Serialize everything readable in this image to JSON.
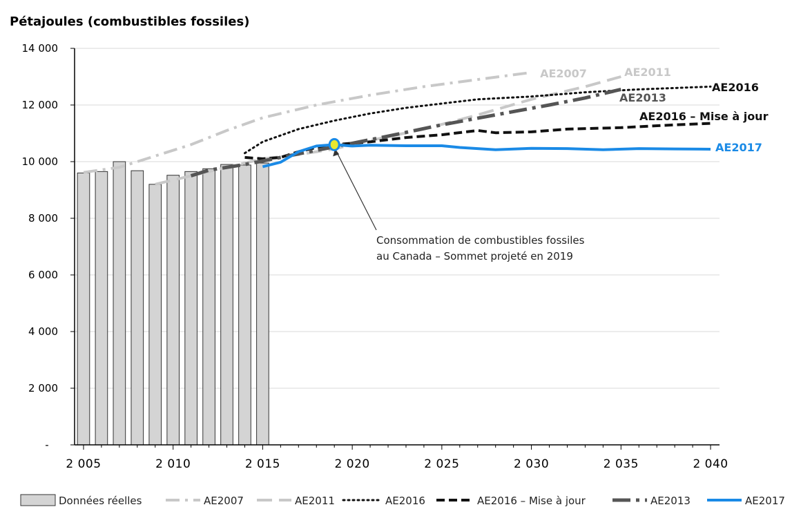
{
  "chart_data": {
    "type": "bar+line",
    "ylabel": "Pétajoules (combustibles fossiles)",
    "ylim": [
      0,
      14000
    ],
    "xlim": [
      2004.5,
      2040.5
    ],
    "y_ticks": [
      {
        "value": 0,
        "label": "-"
      },
      {
        "value": 2000,
        "label": "2 000"
      },
      {
        "value": 4000,
        "label": "4 000"
      },
      {
        "value": 6000,
        "label": "6 000"
      },
      {
        "value": 8000,
        "label": "8 000"
      },
      {
        "value": 10000,
        "label": "10 000"
      },
      {
        "value": 12000,
        "label": "12 000"
      },
      {
        "value": 14000,
        "label": "14 000"
      }
    ],
    "x_ticks": [
      {
        "value": 2005,
        "label": "2 005"
      },
      {
        "value": 2010,
        "label": "2 010"
      },
      {
        "value": 2015,
        "label": "2 015"
      },
      {
        "value": 2020,
        "label": "2 020"
      },
      {
        "value": 2025,
        "label": "2 025"
      },
      {
        "value": 2030,
        "label": "2 030"
      },
      {
        "value": 2035,
        "label": "2 035"
      },
      {
        "value": 2040,
        "label": "2 040"
      }
    ],
    "gridlines": true,
    "bars": {
      "name": "Données réelles",
      "color": "#d4d4d4",
      "x": [
        2005,
        2006,
        2007,
        2008,
        2009,
        2010,
        2011,
        2012,
        2013,
        2014,
        2015
      ],
      "values": [
        9600,
        9650,
        10000,
        9680,
        9200,
        9520,
        9650,
        9750,
        9900,
        9880,
        9950
      ]
    },
    "series": [
      {
        "name": "AE2007",
        "color": "#c8c8c8",
        "style": "dashdot",
        "label": "AE2007",
        "points": [
          [
            2005,
            9620
          ],
          [
            2007,
            9800
          ],
          [
            2009,
            10200
          ],
          [
            2011,
            10600
          ],
          [
            2013,
            11100
          ],
          [
            2015,
            11550
          ],
          [
            2018,
            12000
          ],
          [
            2021,
            12350
          ],
          [
            2024,
            12650
          ],
          [
            2027,
            12900
          ],
          [
            2030,
            13150
          ]
        ]
      },
      {
        "name": "AE2011",
        "color": "#c8c8c8",
        "style": "longdash",
        "label": "AE2011",
        "points": [
          [
            2009,
            9200
          ],
          [
            2011,
            9500
          ],
          [
            2013,
            9800
          ],
          [
            2015,
            10100
          ],
          [
            2017,
            10250
          ],
          [
            2019,
            10450
          ],
          [
            2021,
            10750
          ],
          [
            2024,
            11150
          ],
          [
            2027,
            11650
          ],
          [
            2030,
            12200
          ],
          [
            2033,
            12650
          ],
          [
            2035,
            13000
          ]
        ]
      },
      {
        "name": "AE2016",
        "color": "#111111",
        "style": "dotted",
        "label": "AE2016",
        "points": [
          [
            2014,
            10300
          ],
          [
            2015,
            10700
          ],
          [
            2017,
            11150
          ],
          [
            2019,
            11450
          ],
          [
            2021,
            11700
          ],
          [
            2023,
            11900
          ],
          [
            2025,
            12050
          ],
          [
            2027,
            12200
          ],
          [
            2030,
            12300
          ],
          [
            2033,
            12450
          ],
          [
            2036,
            12550
          ],
          [
            2040,
            12650
          ]
        ]
      },
      {
        "name": "AE2016 – Mise à jour",
        "color": "#111111",
        "style": "dashed",
        "label": "AE2016 – Mise à jour",
        "points": [
          [
            2014,
            10150
          ],
          [
            2015,
            10100
          ],
          [
            2016,
            10150
          ],
          [
            2017,
            10350
          ],
          [
            2018,
            10500
          ],
          [
            2019,
            10600
          ],
          [
            2021,
            10700
          ],
          [
            2023,
            10850
          ],
          [
            2025,
            10950
          ],
          [
            2027,
            11100
          ],
          [
            2028,
            11020
          ],
          [
            2030,
            11050
          ],
          [
            2032,
            11150
          ],
          [
            2035,
            11200
          ],
          [
            2038,
            11300
          ],
          [
            2040,
            11350
          ]
        ]
      },
      {
        "name": "AE2013",
        "color": "#555555",
        "style": "longdashdot",
        "label": "AE2013",
        "points": [
          [
            2011,
            9500
          ],
          [
            2012,
            9700
          ],
          [
            2014,
            9900
          ],
          [
            2016,
            10150
          ],
          [
            2018,
            10400
          ],
          [
            2020,
            10650
          ],
          [
            2022,
            10900
          ],
          [
            2025,
            11300
          ],
          [
            2028,
            11650
          ],
          [
            2031,
            12000
          ],
          [
            2033,
            12250
          ],
          [
            2035,
            12550
          ]
        ]
      },
      {
        "name": "AE2017",
        "color": "#1a8ae6",
        "style": "solid",
        "label": "AE2017",
        "points": [
          [
            2015,
            9820
          ],
          [
            2016,
            9980
          ],
          [
            2017,
            10350
          ],
          [
            2018,
            10550
          ],
          [
            2019,
            10600
          ],
          [
            2020,
            10550
          ],
          [
            2021,
            10580
          ],
          [
            2023,
            10560
          ],
          [
            2025,
            10560
          ],
          [
            2026,
            10500
          ],
          [
            2028,
            10420
          ],
          [
            2030,
            10470
          ],
          [
            2032,
            10460
          ],
          [
            2034,
            10420
          ],
          [
            2036,
            10460
          ],
          [
            2038,
            10450
          ],
          [
            2040,
            10440
          ]
        ]
      }
    ],
    "peak_marker": {
      "x": 2019,
      "y": 10600,
      "color": "#e8e830"
    },
    "annotation": {
      "lines": [
        "Consommation de combustibles fossiles",
        "au Canada – Sommet projeté en 2019"
      ],
      "x": 2019,
      "y": 10600
    },
    "legend": {
      "placement": "bottom",
      "items": [
        {
          "label": "Données réelles",
          "kind": "bar"
        },
        {
          "label": "AE2007",
          "kind": "line",
          "series": "AE2007"
        },
        {
          "label": "AE2011",
          "kind": "line",
          "series": "AE2011"
        },
        {
          "label": "AE2016",
          "kind": "line",
          "series": "AE2016"
        },
        {
          "label": "AE2016 – Mise à jour",
          "kind": "line",
          "series": "AE2016 – Mise à jour"
        },
        {
          "label": "AE2013",
          "kind": "line",
          "series": "AE2013"
        },
        {
          "label": "AE2017",
          "kind": "line",
          "series": "AE2017"
        }
      ]
    }
  }
}
